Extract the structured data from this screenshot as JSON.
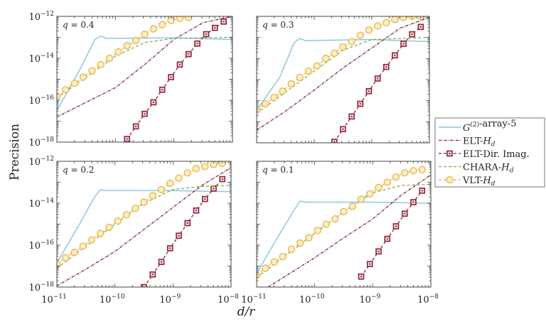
{
  "figure": {
    "xlabel": "d/r",
    "ylabel": "Precision",
    "x_ticks": [
      {
        "base": "10",
        "exp": "−11"
      },
      {
        "base": "10",
        "exp": "−10"
      },
      {
        "base": "10",
        "exp": "−9"
      },
      {
        "base": "10",
        "exp": "−8"
      }
    ],
    "y_ticks": [
      {
        "base": "10",
        "exp": "−12"
      },
      {
        "base": "10",
        "exp": "−14"
      },
      {
        "base": "10",
        "exp": "−16"
      },
      {
        "base": "10",
        "exp": "−18"
      }
    ]
  },
  "colors": {
    "g2": "#8cc7e3",
    "elt": "#7a1f2e",
    "eltdir": "#8b2236",
    "chara": "#8aaa45",
    "vlt": "#e6b54a"
  },
  "legend": {
    "placement": "right",
    "items": [
      {
        "key": "g2",
        "parts": [
          {
            "t": "G",
            "i": true
          },
          {
            "t": "(2)",
            "sup": true
          },
          {
            "t": "-array-5"
          }
        ]
      },
      {
        "key": "elt",
        "parts": [
          {
            "t": "ELT-"
          },
          {
            "t": "H",
            "i": true
          },
          {
            "t": "d",
            "sub": true,
            "i": true
          }
        ]
      },
      {
        "key": "eltdir",
        "parts": [
          {
            "t": "ELT-Dir. Imag."
          }
        ]
      },
      {
        "key": "chara",
        "parts": [
          {
            "t": "CHARA-"
          },
          {
            "t": "H",
            "i": true
          },
          {
            "t": "d",
            "sub": true,
            "i": true
          }
        ]
      },
      {
        "key": "vlt",
        "parts": [
          {
            "t": "VLT-"
          },
          {
            "t": "H",
            "i": true
          },
          {
            "t": "d",
            "sub": true,
            "i": true
          }
        ]
      }
    ]
  },
  "chart_data": [
    {
      "type": "line",
      "title": "q = 0.4",
      "xscale": "log",
      "yscale": "log",
      "xlim": [
        1e-11,
        1e-08
      ],
      "ylim": [
        1e-18,
        1e-12
      ],
      "grid": false,
      "series": [
        {
          "name": "G(2)-array-5",
          "key": "g2",
          "x": [
            1e-11,
            2.51e-11,
            4.47e-11,
            5.62e-11,
            7.08e-11,
            1e-09,
            1e-08
          ],
          "y": [
            3.16e-17,
            3.16e-15,
            7.94e-14,
            1.12e-13,
            8.91e-14,
            9.5e-14,
            7.94e-14
          ]
        },
        {
          "name": "ELT-Hd",
          "key": "elt",
          "x": [
            1e-11,
            3.16e-11,
            1e-10,
            3.16e-10,
            1e-09,
            3.16e-09,
            1e-08
          ],
          "y": [
            1.58e-17,
            7.94e-17,
            3.98e-16,
            5.01e-15,
            7.94e-14,
            5.01e-13,
            1e-12
          ]
        },
        {
          "name": "ELT-Dir. Imag.",
          "key": "eltdir",
          "x": [
            1.58e-10,
            2.24e-10,
            3.16e-10,
            4.47e-10,
            6.31e-10,
            8.91e-10,
            1.26e-09,
            1.78e-09,
            2.51e-09,
            3.55e-09,
            5.01e-09,
            7.08e-09
          ],
          "y": [
            1.41e-18,
            5.62e-18,
            2.24e-17,
            7.94e-17,
            3.16e-16,
            1.26e-15,
            5.01e-15,
            1.58e-14,
            5.01e-14,
            1.41e-13,
            2.82e-13,
            5.62e-13
          ]
        },
        {
          "name": "CHARA-Hd",
          "key": "chara",
          "x": [
            1e-11,
            3.16e-11,
            1e-10,
            3.16e-10,
            1e-09,
            1e-08
          ],
          "y": [
            1.26e-16,
            1.26e-15,
            1.26e-14,
            5.62e-14,
            8.91e-14,
            1e-13
          ]
        },
        {
          "name": "VLT-Hd",
          "key": "vlt",
          "x": [
            1e-11,
            1.41e-11,
            2e-11,
            2.82e-11,
            3.98e-11,
            5.62e-11,
            7.94e-11,
            1.12e-10,
            1.58e-10,
            2.24e-10,
            3.16e-10,
            4.47e-10,
            6.31e-10,
            8.91e-10,
            1.26e-09,
            1.78e-09
          ],
          "y": [
            1.58e-16,
            3.16e-16,
            6.31e-16,
            1.26e-15,
            2.51e-15,
            5.01e-15,
            1e-14,
            2e-14,
            3.98e-14,
            7.08e-14,
            1.41e-13,
            2.51e-13,
            3.98e-13,
            6.31e-13,
            7.94e-13,
            8.91e-13
          ]
        }
      ]
    },
    {
      "type": "line",
      "title": "q = 0.3",
      "xscale": "log",
      "yscale": "log",
      "xlim": [
        1e-11,
        1e-08
      ],
      "ylim": [
        1e-18,
        1e-12
      ],
      "grid": false,
      "series": [
        {
          "name": "G(2)-array-5",
          "key": "g2",
          "x": [
            1e-11,
            2.51e-11,
            4.47e-11,
            5.62e-11,
            7.08e-11,
            1e-09,
            1e-08
          ],
          "y": [
            3.55e-17,
            1.26e-15,
            5.62e-14,
            8.91e-14,
            7.08e-14,
            7.94e-14,
            6.31e-14
          ]
        },
        {
          "name": "ELT-Hd",
          "key": "elt",
          "x": [
            1e-11,
            3.16e-11,
            1e-10,
            3.16e-10,
            1e-09,
            3.16e-09,
            1e-08
          ],
          "y": [
            3.98e-18,
            3.16e-17,
            3.16e-16,
            3.55e-15,
            3.16e-14,
            2.82e-13,
            8.91e-13
          ]
        },
        {
          "name": "ELT-Dir. Imag.",
          "key": "eltdir",
          "x": [
            2.24e-10,
            3.16e-10,
            4.47e-10,
            6.31e-10,
            8.91e-10,
            1.26e-09,
            1.78e-09,
            2.51e-09,
            3.55e-09,
            5.01e-09,
            7.08e-09
          ],
          "y": [
            1.12e-18,
            4.47e-18,
            1.78e-17,
            7.08e-17,
            2.82e-16,
            1.12e-15,
            3.98e-15,
            1.41e-14,
            5.01e-14,
            1.41e-13,
            3.16e-13
          ]
        },
        {
          "name": "CHARA-Hd",
          "key": "chara",
          "x": [
            1e-11,
            3.16e-11,
            1e-10,
            3.16e-10,
            1e-09,
            1e-08
          ],
          "y": [
            2.51e-17,
            2.51e-16,
            2.51e-15,
            2.51e-14,
            7.94e-14,
            1e-13
          ]
        },
        {
          "name": "VLT-Hd",
          "key": "vlt",
          "x": [
            1e-11,
            1.41e-11,
            2e-11,
            2.82e-11,
            3.98e-11,
            5.62e-11,
            7.94e-11,
            1.12e-10,
            1.58e-10,
            2.24e-10,
            3.16e-10,
            4.47e-10,
            6.31e-10,
            8.91e-10,
            1.26e-09,
            1.78e-09,
            2.51e-09,
            3.55e-09,
            5.01e-09,
            7.08e-09
          ],
          "y": [
            3.55e-17,
            7.08e-17,
            1.41e-16,
            2.82e-16,
            6.31e-16,
            1.26e-15,
            2.51e-15,
            4.47e-15,
            1e-14,
            1.78e-14,
            3.55e-14,
            6.31e-14,
            1.26e-13,
            2.24e-13,
            3.55e-13,
            5.01e-13,
            7.08e-13,
            8.91e-13,
            1e-12,
            1e-12
          ]
        }
      ]
    },
    {
      "type": "line",
      "title": "q = 0.2",
      "xscale": "log",
      "yscale": "log",
      "xlim": [
        1e-11,
        1e-08
      ],
      "ylim": [
        1e-18,
        1e-12
      ],
      "grid": false,
      "series": [
        {
          "name": "G(2)-array-5",
          "key": "g2",
          "x": [
            1e-11,
            2.51e-11,
            4.47e-11,
            5.62e-11,
            7.08e-11,
            1e-09,
            1e-08
          ],
          "y": [
            1.41e-17,
            1.12e-15,
            2e-14,
            4.47e-14,
            3.98e-14,
            3.98e-14,
            3.55e-14
          ]
        },
        {
          "name": "ELT-Hd",
          "key": "elt",
          "x": [
            1e-11,
            3.16e-11,
            1e-10,
            3.16e-10,
            1e-09,
            3.16e-09,
            1e-08
          ],
          "y": [
            1.12e-18,
            7.08e-18,
            5.01e-17,
            5.62e-16,
            6.31e-15,
            7.08e-14,
            5.01e-13
          ]
        },
        {
          "name": "ELT-Dir. Imag.",
          "key": "eltdir",
          "x": [
            3.16e-10,
            4.47e-10,
            6.31e-10,
            8.91e-10,
            1.26e-09,
            1.78e-09,
            2.51e-09,
            3.55e-09,
            5.01e-09,
            7.08e-09
          ],
          "y": [
            1e-18,
            3.98e-18,
            1.58e-17,
            7.08e-17,
            2.82e-16,
            1.12e-15,
            4.47e-15,
            1.58e-14,
            5.01e-14,
            1.41e-13
          ]
        },
        {
          "name": "CHARA-Hd",
          "key": "chara",
          "x": [
            1e-11,
            3.16e-11,
            1e-10,
            3.16e-10,
            1e-09,
            3.16e-09,
            1e-08
          ],
          "y": [
            7.94e-18,
            8.91e-17,
            1e-15,
            1e-14,
            4.47e-14,
            6.31e-14,
            7.08e-14
          ]
        },
        {
          "name": "VLT-Hd",
          "key": "vlt",
          "x": [
            1e-11,
            1.41e-11,
            2e-11,
            2.82e-11,
            3.98e-11,
            5.62e-11,
            7.94e-11,
            1.12e-10,
            1.58e-10,
            2.24e-10,
            3.16e-10,
            4.47e-10,
            6.31e-10,
            8.91e-10,
            1.26e-09,
            1.78e-09,
            2.51e-09,
            3.55e-09,
            5.01e-09,
            7.08e-09
          ],
          "y": [
            1.26e-17,
            2.51e-17,
            4.47e-17,
            8.91e-17,
            1.78e-16,
            3.55e-16,
            7.08e-16,
            1.41e-15,
            2.82e-15,
            5.62e-15,
            1.12e-14,
            2.24e-14,
            4.47e-14,
            8.91e-14,
            1.58e-13,
            2.82e-13,
            4.47e-13,
            5.62e-13,
            7.08e-13,
            7.94e-13
          ]
        }
      ]
    },
    {
      "type": "line",
      "title": "q = 0.1",
      "xscale": "log",
      "yscale": "log",
      "xlim": [
        1e-11,
        1e-08
      ],
      "ylim": [
        1e-18,
        1e-12
      ],
      "grid": false,
      "series": [
        {
          "name": "G(2)-array-5",
          "key": "g2",
          "x": [
            1e-11,
            2.51e-11,
            4.47e-11,
            5.62e-11,
            7.08e-11,
            1e-09,
            1e-08
          ],
          "y": [
            4.47e-18,
            3.55e-16,
            5.01e-15,
            1.26e-14,
            1.12e-14,
            1.12e-14,
            1e-14
          ]
        },
        {
          "name": "ELT-Hd",
          "key": "elt",
          "x": [
            1.58e-11,
            1e-10,
            3.16e-10,
            1e-09,
            3.16e-09,
            1e-08
          ],
          "y": [
            1e-18,
            2.51e-17,
            2.24e-16,
            1.78e-15,
            2.51e-14,
            2.24e-13
          ]
        },
        {
          "name": "ELT-Dir. Imag.",
          "key": "eltdir",
          "x": [
            6.31e-10,
            8.91e-10,
            1.26e-09,
            1.78e-09,
            2.51e-09,
            3.55e-09,
            5.01e-09,
            7.08e-09
          ],
          "y": [
            3.16e-18,
            1.26e-17,
            5.01e-17,
            2e-16,
            7.94e-16,
            3.16e-15,
            1.12e-14,
            3.98e-14
          ]
        },
        {
          "name": "CHARA-Hd",
          "key": "chara",
          "x": [
            1e-11,
            3.16e-11,
            1e-10,
            3.16e-10,
            1e-09,
            3.16e-09,
            1e-08
          ],
          "y": [
            2.82e-18,
            3.16e-17,
            3.55e-16,
            3.98e-15,
            3.16e-14,
            7.08e-14,
            7.94e-14
          ]
        },
        {
          "name": "VLT-Hd",
          "key": "vlt",
          "x": [
            1e-11,
            1.41e-11,
            2e-11,
            2.82e-11,
            3.98e-11,
            5.62e-11,
            7.94e-11,
            1.12e-10,
            1.58e-10,
            2.24e-10,
            3.16e-10,
            4.47e-10,
            6.31e-10,
            8.91e-10,
            1.26e-09,
            1.78e-09,
            2.51e-09,
            3.55e-09,
            5.01e-09,
            7.08e-09
          ],
          "y": [
            3.55e-18,
            7.94e-18,
            1.58e-17,
            2.82e-17,
            6.31e-17,
            1.26e-16,
            2.24e-16,
            5.01e-16,
            1e-15,
            1.78e-15,
            3.98e-15,
            7.08e-15,
            1.58e-14,
            2.82e-14,
            5.62e-14,
            1e-13,
            1.78e-13,
            2.82e-13,
            3.55e-13,
            3.98e-13
          ]
        }
      ]
    }
  ]
}
